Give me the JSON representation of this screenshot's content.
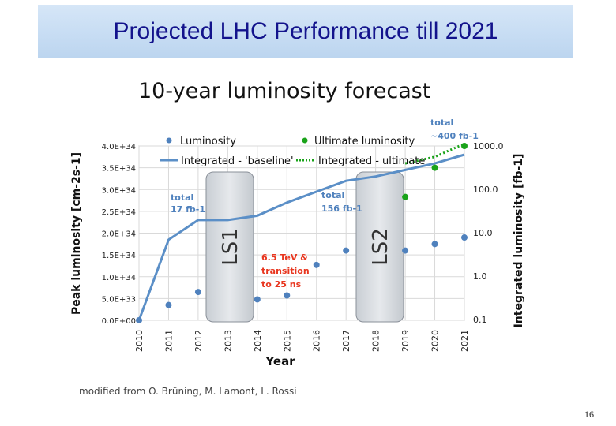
{
  "slide": {
    "title": "Projected LHC Performance till 2021",
    "credit": "modified from O. Brüning, M. Lamont, L. Rossi",
    "page_number": "16"
  },
  "chart_data": {
    "type": "line",
    "title": "10-year luminosity forecast",
    "xlabel": "Year",
    "ylabel_left": "Peak luminosity [cm-2s-1]",
    "ylabel_right": "Integrated luminosity [fb-1]",
    "x": [
      "2010",
      "2011",
      "2012",
      "2013",
      "2014",
      "2015",
      "2016",
      "2017",
      "2018",
      "2019",
      "2020",
      "2021"
    ],
    "y_left_ticks": [
      "0.0E+00",
      "5.0E+33",
      "1.0E+34",
      "1.5E+34",
      "2.0E+34",
      "2.5E+34",
      "3.0E+34",
      "3.5E+34",
      "4.0E+34"
    ],
    "ylim_left": [
      0,
      4e+34
    ],
    "y_right_ticks": [
      "0.1",
      "1.0",
      "10.0",
      "100.0",
      "1000.0"
    ],
    "ylim_right_log10": [
      -1,
      3
    ],
    "series": [
      {
        "name": "Luminosity",
        "kind": "scatter",
        "color": "#4f81bd",
        "points": [
          [
            2010,
            0.0
          ],
          [
            2011,
            3.5e+33
          ],
          [
            2012,
            6.5e+33
          ],
          [
            2014,
            4.8e+33
          ],
          [
            2015,
            5.7e+33
          ],
          [
            2016,
            1.27e+34
          ],
          [
            2017,
            1.6e+34
          ],
          [
            2019,
            1.6e+34
          ],
          [
            2020,
            1.75e+34
          ],
          [
            2021,
            1.9e+34
          ]
        ]
      },
      {
        "name": "Ultimate luminosity",
        "kind": "scatter",
        "color": "#1aa31a",
        "points": [
          [
            2019,
            2.83e+34
          ],
          [
            2020,
            3.5e+34
          ],
          [
            2021,
            4e+34
          ]
        ]
      },
      {
        "name": "Integrated - 'baseline'",
        "kind": "line",
        "color": "#5b8fc7",
        "points": [
          [
            2010,
            0.0
          ],
          [
            2011,
            1.85e+34
          ],
          [
            2012,
            2.3e+34
          ],
          [
            2013,
            2.3e+34
          ],
          [
            2014,
            2.4e+34
          ],
          [
            2015,
            2.7e+34
          ],
          [
            2016,
            2.95e+34
          ],
          [
            2017,
            3.2e+34
          ],
          [
            2018,
            3.3e+34
          ],
          [
            2019,
            3.45e+34
          ],
          [
            2020,
            3.6e+34
          ],
          [
            2021,
            3.8e+34
          ]
        ]
      },
      {
        "name": "Integrated - ultimate",
        "kind": "dotted-line",
        "color": "#1aa31a",
        "points": [
          [
            2019,
            3.6e+34
          ],
          [
            2020,
            3.75e+34
          ],
          [
            2021,
            4.05e+34
          ]
        ]
      }
    ],
    "annotations": [
      {
        "label": "LS1",
        "kind": "shutdown-period"
      },
      {
        "label": "LS2",
        "kind": "shutdown-period"
      },
      {
        "line1": "total",
        "line2": "17 fb-1"
      },
      {
        "line1": "total",
        "line2": "156 fb-1"
      },
      {
        "line1": "total",
        "line2": "~400 fb-1"
      },
      {
        "lines": [
          "6.5 TeV &",
          "transition",
          "to 25 ns"
        ]
      }
    ]
  }
}
